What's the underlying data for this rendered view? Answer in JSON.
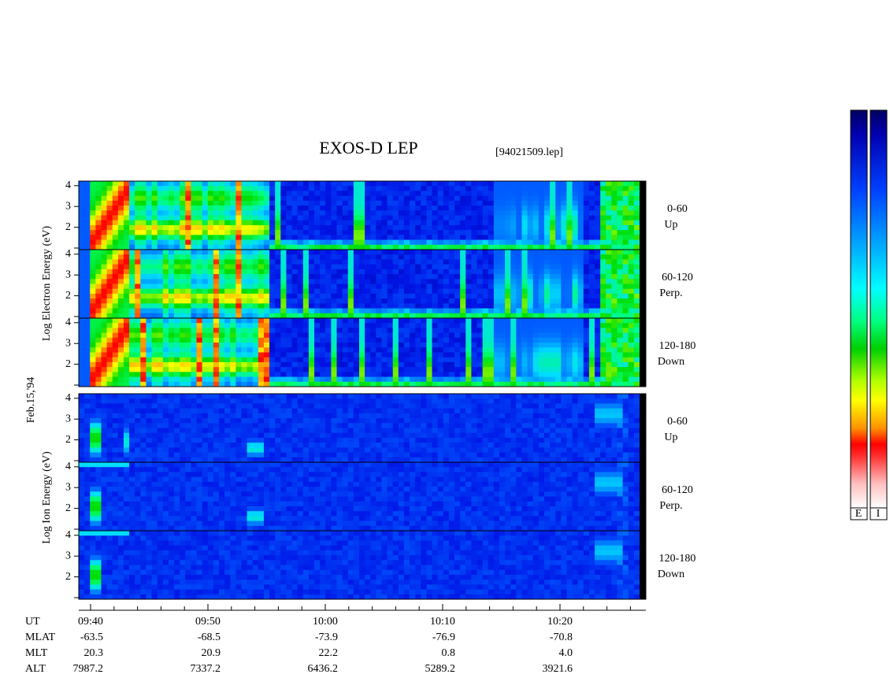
{
  "title": "EXOS-D LEP",
  "file": "[94021509.lep]",
  "date": "Feb.15,'94",
  "electron": {
    "axis_label": "Log Electron Energy (eV)",
    "yticks": [
      2,
      3,
      4
    ],
    "panels": [
      {
        "range": "0-60",
        "direction": "Up"
      },
      {
        "range": "60-120",
        "direction": "Perp."
      },
      {
        "range": "120-180",
        "direction": "Down"
      }
    ]
  },
  "ion": {
    "axis_label": "Log Ion Energy (eV)",
    "yticks": [
      2,
      3,
      4
    ],
    "panels": [
      {
        "range": "0-60",
        "direction": "Up"
      },
      {
        "range": "60-120",
        "direction": "Perp."
      },
      {
        "range": "120-180",
        "direction": "Down"
      }
    ]
  },
  "time_axis": {
    "rows": [
      {
        "name": "UT",
        "values": [
          "09:40",
          "09:50",
          "10:00",
          "10:10",
          "10:20"
        ]
      },
      {
        "name": "MLAT",
        "values": [
          "-63.5",
          "-68.5",
          "-73.9",
          "-76.9",
          "-70.8"
        ]
      },
      {
        "name": "MLT",
        "values": [
          "20.3",
          "20.9",
          "22.2",
          "0.8",
          "4.0"
        ]
      },
      {
        "name": "ALT",
        "values": [
          "7987.2",
          "7337.2",
          "6436.2",
          "5289.2",
          "3921.6"
        ]
      }
    ]
  },
  "colorbars": [
    "E",
    "I"
  ]
}
